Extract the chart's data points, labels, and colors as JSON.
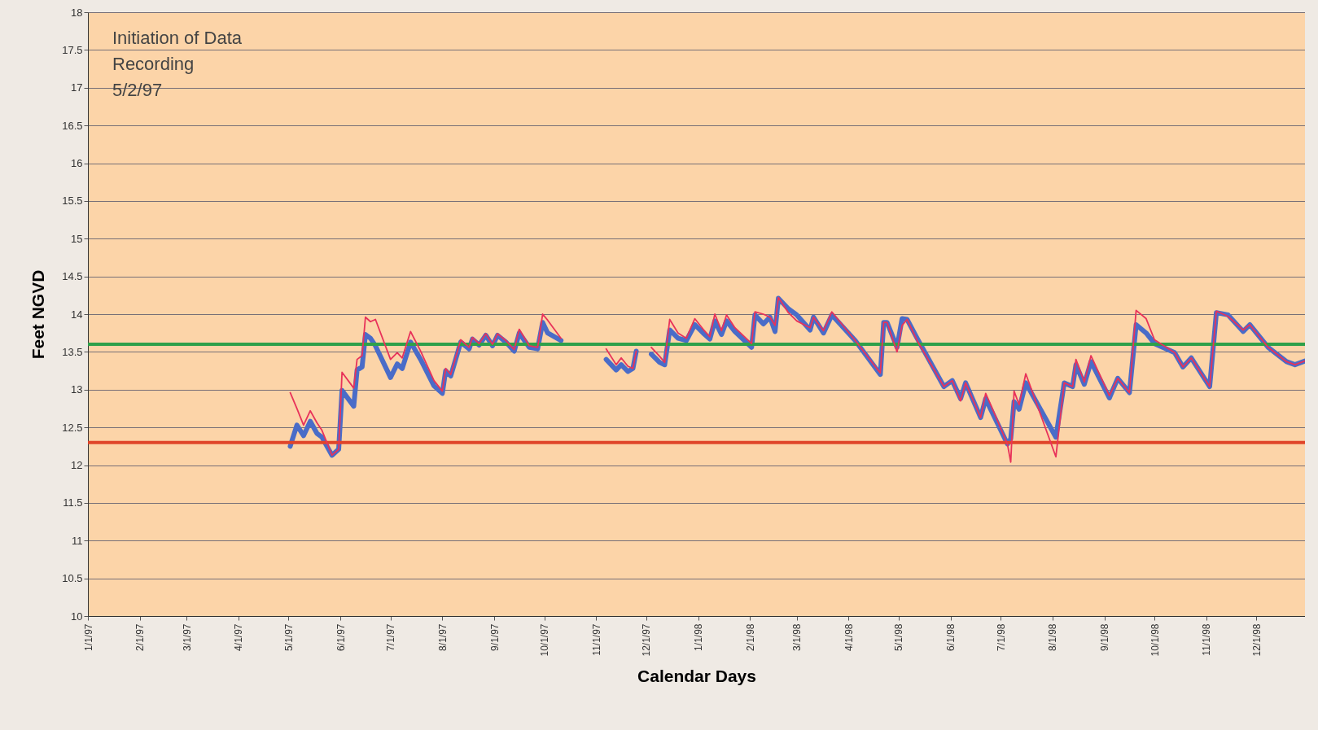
{
  "chart_data": {
    "type": "line",
    "xlabel": "Calendar Days",
    "ylabel": "Feet NGVD",
    "annotations": [
      "Initiation of Data\nRecording\n5/2/97"
    ],
    "x": [
      "1997-05-02",
      "1997-05-06",
      "1997-05-10",
      "1997-05-14",
      "1997-05-18",
      "1997-05-21",
      "1997-05-27",
      "1997-05-31",
      "1997-06-02",
      "1997-06-09",
      "1997-06-11",
      "1997-06-14",
      "1997-06-16",
      "1997-06-19",
      "1997-06-22",
      "1997-07-01",
      "1997-07-05",
      "1997-07-08",
      "1997-07-13",
      "1997-07-19",
      "1997-07-27",
      "1997-08-01",
      "1997-08-03",
      "1997-08-06",
      "1997-08-12",
      "1997-08-17",
      "1997-08-19",
      "1997-08-23",
      "1997-08-27",
      "1997-08-31",
      "1997-09-03",
      "1997-09-08",
      "1997-09-13",
      "1997-09-16",
      "1997-09-22",
      "1997-09-27",
      "1997-09-30",
      "1997-10-03",
      "1997-10-11",
      "1997-10-24",
      "1997-11-07",
      "1997-11-13",
      "1997-11-16",
      "1997-11-20",
      "1997-11-23",
      "1997-11-25",
      "1997-11-29",
      "1997-12-04",
      "1997-12-09",
      "1997-12-12",
      "1997-12-15",
      "1997-12-20",
      "1997-12-25",
      "1997-12-30",
      "1998-01-04",
      "1998-01-08",
      "1998-01-11",
      "1998-01-15",
      "1998-01-18",
      "1998-01-23",
      "1998-02-02",
      "1998-02-04",
      "1998-02-09",
      "1998-02-13",
      "1998-02-16",
      "1998-02-18",
      "1998-02-24",
      "1998-03-01",
      "1998-03-09",
      "1998-03-11",
      "1998-03-17",
      "1998-03-22",
      "1998-04-05",
      "1998-04-20",
      "1998-04-22",
      "1998-04-24",
      "1998-04-30",
      "1998-05-03",
      "1998-05-06",
      "1998-05-12",
      "1998-05-28",
      "1998-06-02",
      "1998-06-07",
      "1998-06-10",
      "1998-06-19",
      "1998-06-22",
      "1998-06-25",
      "1998-07-05",
      "1998-07-07",
      "1998-07-09",
      "1998-07-12",
      "1998-07-16",
      "1998-08-03",
      "1998-08-08",
      "1998-08-13",
      "1998-08-15",
      "1998-08-20",
      "1998-08-24",
      "1998-09-04",
      "1998-09-09",
      "1998-09-16",
      "1998-09-20",
      "1998-09-26",
      "1998-10-01",
      "1998-10-13",
      "1998-10-18",
      "1998-10-23",
      "1998-11-03",
      "1998-11-07",
      "1998-11-14",
      "1998-11-23",
      "1998-11-27",
      "1998-12-08",
      "1998-12-19",
      "1998-12-24",
      "1998-12-30"
    ],
    "series": [
      {
        "color": "#e8325a",
        "values": [
          12.96,
          12.75,
          12.53,
          12.72,
          12.56,
          12.46,
          12.13,
          12.21,
          13.23,
          13.02,
          13.4,
          13.45,
          13.96,
          13.9,
          13.93,
          13.4,
          13.49,
          13.42,
          13.77,
          13.51,
          13.12,
          12.98,
          13.28,
          13.2,
          13.66,
          13.56,
          13.69,
          13.61,
          13.74,
          13.6,
          13.74,
          13.65,
          13.53,
          13.8,
          13.58,
          13.56,
          14.0,
          13.92,
          13.68,
          null,
          13.54,
          13.33,
          13.42,
          13.31,
          13.28,
          13.51,
          null,
          13.56,
          13.44,
          13.36,
          13.93,
          13.75,
          13.68,
          13.94,
          13.8,
          13.7,
          14.0,
          13.78,
          13.99,
          13.82,
          13.61,
          14.03,
          14.0,
          13.96,
          13.85,
          14.22,
          14.02,
          13.91,
          13.82,
          13.96,
          13.78,
          14.03,
          13.65,
          13.22,
          13.89,
          13.89,
          13.5,
          13.85,
          13.93,
          13.65,
          13.04,
          13.12,
          12.85,
          13.09,
          12.63,
          12.95,
          12.8,
          12.28,
          12.04,
          12.98,
          12.8,
          13.21,
          12.11,
          13.09,
          13.04,
          13.4,
          13.1,
          13.45,
          12.92,
          13.15,
          12.96,
          14.05,
          13.94,
          13.66,
          13.49,
          13.3,
          13.42,
          13.04,
          14.04,
          13.97,
          13.79,
          13.86,
          13.56,
          13.37,
          13.33,
          13.38
        ]
      },
      {
        "color": "#4a6cc8",
        "values": [
          12.25,
          12.53,
          12.39,
          12.58,
          12.42,
          12.37,
          12.13,
          12.21,
          12.99,
          12.78,
          13.26,
          13.3,
          13.73,
          13.68,
          13.58,
          13.16,
          13.34,
          13.28,
          13.63,
          13.4,
          13.05,
          12.95,
          13.25,
          13.18,
          13.63,
          13.54,
          13.67,
          13.59,
          13.72,
          13.58,
          13.72,
          13.63,
          13.51,
          13.75,
          13.56,
          13.54,
          13.89,
          13.75,
          13.65,
          null,
          13.4,
          13.26,
          13.33,
          13.24,
          13.28,
          13.51,
          null,
          13.47,
          13.36,
          13.33,
          13.79,
          13.68,
          13.65,
          13.86,
          13.75,
          13.67,
          13.91,
          13.73,
          13.91,
          13.77,
          13.56,
          13.99,
          13.87,
          13.96,
          13.77,
          14.21,
          14.07,
          13.99,
          13.79,
          13.96,
          13.75,
          13.99,
          13.65,
          13.2,
          13.89,
          13.89,
          13.56,
          13.94,
          13.93,
          13.68,
          13.04,
          13.12,
          12.88,
          13.09,
          12.63,
          12.88,
          12.74,
          12.28,
          12.35,
          12.84,
          12.74,
          13.09,
          12.37,
          13.09,
          13.04,
          13.33,
          13.07,
          13.37,
          12.89,
          13.15,
          12.96,
          13.86,
          13.75,
          13.61,
          13.49,
          13.3,
          13.42,
          13.04,
          14.02,
          13.99,
          13.77,
          13.86,
          13.56,
          13.37,
          13.33,
          13.38
        ]
      }
    ],
    "xlim": [
      "1997-01-01",
      "1998-12-30"
    ],
    "xticks": [
      {
        "value": "1997-01-01",
        "label": "1/1/97"
      },
      {
        "value": "1997-02-01",
        "label": "2/1/97"
      },
      {
        "value": "1997-03-01",
        "label": "3/1/97"
      },
      {
        "value": "1997-04-01",
        "label": "4/1/97"
      },
      {
        "value": "1997-05-01",
        "label": "5/1/97"
      },
      {
        "value": "1997-06-01",
        "label": "6/1/97"
      },
      {
        "value": "1997-07-01",
        "label": "7/1/97"
      },
      {
        "value": "1997-08-01",
        "label": "8/1/97"
      },
      {
        "value": "1997-09-01",
        "label": "9/1/97"
      },
      {
        "value": "1997-10-01",
        "label": "10/1/97"
      },
      {
        "value": "1997-11-01",
        "label": "11/1/97"
      },
      {
        "value": "1997-12-01",
        "label": "12/1/97"
      },
      {
        "value": "1998-01-01",
        "label": "1/1/98"
      },
      {
        "value": "1998-02-01",
        "label": "2/1/98"
      },
      {
        "value": "1998-03-01",
        "label": "3/1/98"
      },
      {
        "value": "1998-04-01",
        "label": "4/1/98"
      },
      {
        "value": "1998-05-01",
        "label": "5/1/98"
      },
      {
        "value": "1998-06-01",
        "label": "6/1/98"
      },
      {
        "value": "1998-07-01",
        "label": "7/1/98"
      },
      {
        "value": "1998-08-01",
        "label": "8/1/98"
      },
      {
        "value": "1998-09-01",
        "label": "9/1/98"
      },
      {
        "value": "1998-10-01",
        "label": "10/1/98"
      },
      {
        "value": "1998-11-01",
        "label": "11/1/98"
      },
      {
        "value": "1998-12-01",
        "label": "12/1/98"
      }
    ],
    "ylim": [
      10,
      18
    ],
    "yticks": [
      10,
      10.5,
      11,
      11.5,
      12,
      12.5,
      13,
      13.5,
      14,
      14.5,
      15,
      15.5,
      16,
      16.5,
      17,
      17.5,
      18
    ],
    "ref_lines": [
      {
        "axis": "y",
        "value": 13.6,
        "color": "#2ea04a"
      },
      {
        "axis": "y",
        "value": 12.3,
        "color": "#e0452a"
      }
    ],
    "grid": "y",
    "line_style": "solid",
    "marker": "none"
  }
}
